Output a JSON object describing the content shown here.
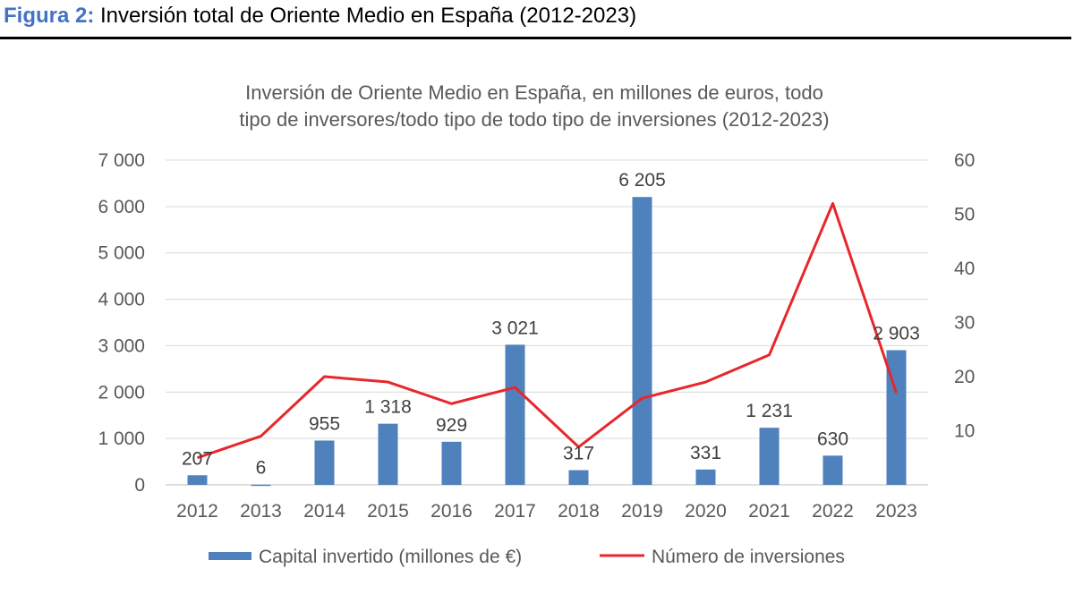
{
  "figure": {
    "label": "Figura 2:",
    "caption": "Inversión total de Oriente Medio en España (2012-2023)"
  },
  "chart_data": {
    "type": "bar",
    "title_lines": [
      "Inversión de Oriente Medio en España, en millones de euros, todo",
      "tipo de inversores/todo tipo de todo tipo de inversiones (2012-2023)"
    ],
    "categories": [
      "2012",
      "2013",
      "2014",
      "2015",
      "2016",
      "2017",
      "2018",
      "2019",
      "2020",
      "2021",
      "2022",
      "2023"
    ],
    "series": [
      {
        "name": "Capital invertido (millones de €)",
        "type": "bar",
        "axis": "left",
        "color": "#4F81BD",
        "values": [
          207,
          6,
          955,
          1318,
          929,
          3021,
          317,
          6205,
          331,
          1231,
          630,
          2903
        ],
        "labels": [
          "207",
          "6",
          "955",
          "1 318",
          "929",
          "3 021",
          "317",
          "6 205",
          "331",
          "1 231",
          "630",
          "2 903"
        ]
      },
      {
        "name": "Número de inversiones",
        "type": "line",
        "axis": "right",
        "color": "#E8262B",
        "values": [
          5,
          9,
          20,
          19,
          15,
          18,
          7,
          16,
          19,
          24,
          52,
          17
        ]
      }
    ],
    "y_left": {
      "min": 0,
      "max": 7000,
      "ticks": [
        0,
        1000,
        2000,
        3000,
        4000,
        5000,
        6000,
        7000
      ],
      "tick_labels": [
        "0",
        "1 000",
        "2 000",
        "3 000",
        "4 000",
        "5 000",
        "6 000",
        "7 000"
      ]
    },
    "y_right": {
      "min": 0,
      "max": 60,
      "ticks": [
        10,
        20,
        30,
        40,
        50,
        60
      ],
      "tick_labels": [
        "10",
        "20",
        "30",
        "40",
        "50",
        "60"
      ]
    },
    "grid": true,
    "legend_position": "bottom"
  }
}
